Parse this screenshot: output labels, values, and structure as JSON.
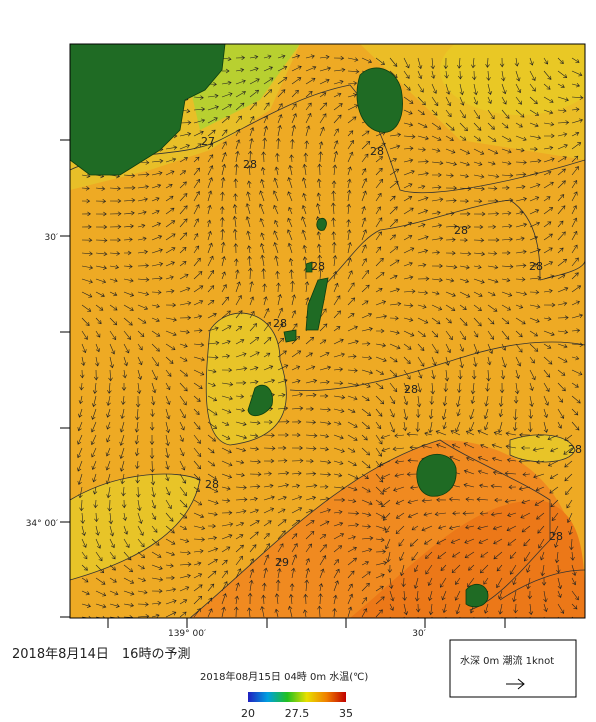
{
  "map": {
    "title": "2018年8月14日　16時の予測",
    "subtitle": "2018年08月15日 04時 0m 水温(℃)",
    "colorbar": {
      "lim": [
        20,
        35
      ],
      "ticks": [
        20,
        27.5,
        35
      ]
    },
    "y_labels": [
      "30′",
      "34° 00′"
    ],
    "x_labels": [
      "139° 00′",
      "30′"
    ],
    "contour_labels": [
      27,
      28,
      28,
      28,
      28,
      28,
      28,
      28,
      28,
      28,
      28,
      29
    ],
    "legend": "水深 0m 潮流 1knot"
  }
}
